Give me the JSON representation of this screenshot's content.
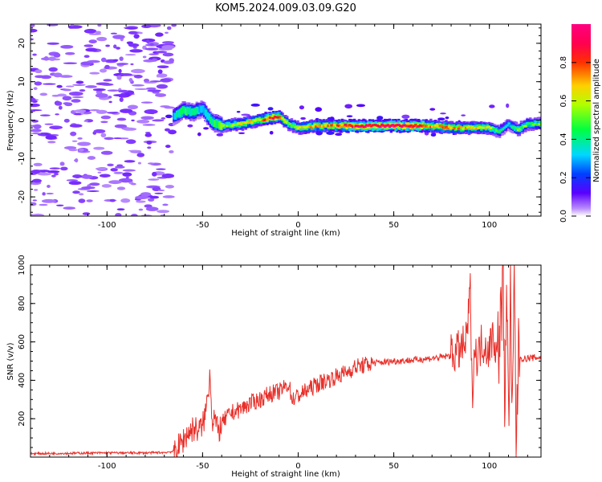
{
  "title": "KOM5.2024.009.03.09.G20",
  "colors": {
    "snr_line": "#e8302a",
    "trace_hot": "#d10000",
    "noise": "#c79cff"
  },
  "chart_data": [
    {
      "type": "heatmap",
      "title": "KOM5.2024.009.03.09.G20",
      "xlabel": "Height of straight line (km)",
      "ylabel": "Frequency (Hz)",
      "xlim": [
        -140,
        127
      ],
      "ylim": [
        -25,
        25
      ],
      "xticks": [
        "-100",
        "-50",
        "0",
        "50",
        "100"
      ],
      "yticks": [
        "-20",
        "-10",
        "0",
        "10",
        "20"
      ],
      "colorbar": {
        "label": "Normalized spectral amplitude",
        "range": [
          0,
          1
        ],
        "ticks": [
          "0.0",
          "0.2",
          "0.4",
          "0.6",
          "0.8"
        ],
        "colormap": "gist_rainbow (purple-blue-cyan-green-yellow-red-magenta)"
      },
      "trace": {
        "x": [
          -65,
          -60,
          -55,
          -50,
          -45,
          -40,
          -30,
          -20,
          -15,
          -10,
          -5,
          0,
          10,
          20,
          30,
          40,
          50,
          60,
          70,
          80,
          90,
          100,
          105,
          110,
          115,
          120,
          127
        ],
        "freq": [
          1,
          2.5,
          2,
          3,
          -0.5,
          -1.5,
          -1,
          0,
          0.5,
          1,
          -1,
          -2,
          -1.5,
          -1.5,
          -1.5,
          -1.5,
          -1.5,
          -1.5,
          -1.5,
          -2,
          -2,
          -2,
          -3,
          -1,
          -2.5,
          -1,
          -1
        ],
        "amplitude": [
          0.3,
          0.45,
          0.4,
          0.3,
          0.4,
          0.5,
          0.6,
          0.65,
          0.85,
          0.8,
          0.5,
          0.6,
          0.7,
          0.75,
          0.9,
          0.95,
          0.95,
          0.95,
          0.7,
          0.7,
          0.65,
          0.6,
          0.4,
          0.3,
          0.5,
          0.5,
          0.5
        ]
      },
      "noise_region_x": [
        -140,
        -65
      ]
    },
    {
      "type": "line",
      "xlabel": "Height of straight line (km)",
      "ylabel": "SNR (v/v)",
      "xlim": [
        -140,
        127
      ],
      "ylim": [
        0,
        1000
      ],
      "xticks": [
        "-100",
        "-50",
        "0",
        "50",
        "100"
      ],
      "yticks": [
        "200",
        "400",
        "600",
        "800",
        "1000"
      ],
      "series": [
        {
          "x": [
            -140,
            -120,
            -100,
            -80,
            -70,
            -65,
            -62,
            -58,
            -55,
            -52,
            -50,
            -48,
            -46,
            -45,
            -44,
            -42,
            -40,
            -38,
            -35,
            -30,
            -25,
            -20,
            -15,
            -10,
            -5,
            -3,
            0,
            5,
            10,
            15,
            20,
            25,
            30,
            35,
            40,
            50,
            60,
            70,
            75,
            80,
            85,
            88,
            90,
            91,
            92,
            94,
            96,
            100,
            102,
            104,
            106,
            107,
            108,
            109,
            110,
            111,
            112,
            113,
            114,
            115,
            116,
            118,
            120,
            127
          ],
          "y": [
            18,
            20,
            22,
            22,
            24,
            30,
            60,
            120,
            150,
            140,
            160,
            260,
            450,
            180,
            220,
            130,
            170,
            200,
            230,
            250,
            280,
            300,
            330,
            340,
            380,
            300,
            320,
            350,
            380,
            400,
            420,
            440,
            470,
            480,
            490,
            500,
            505,
            515,
            520,
            530,
            560,
            600,
            870,
            300,
            560,
            520,
            600,
            560,
            650,
            520,
            700,
            960,
            250,
            950,
            150,
            900,
            100,
            1000,
            60,
            480,
            520,
            510,
            515,
            520
          ]
        }
      ]
    }
  ]
}
